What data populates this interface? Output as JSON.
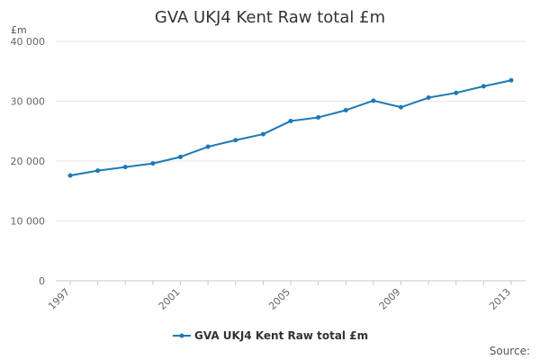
{
  "chart_data": {
    "type": "line",
    "title": "GVA UKJ4 Kent Raw total £m",
    "ylabel": "£m",
    "xlabel": "",
    "x": [
      1997,
      1998,
      1999,
      2000,
      2001,
      2002,
      2003,
      2004,
      2005,
      2006,
      2007,
      2008,
      2009,
      2010,
      2011,
      2012,
      2013
    ],
    "series": [
      {
        "name": "GVA UKJ4 Kent Raw total £m",
        "values": [
          17600,
          18400,
          19000,
          19600,
          20700,
          22400,
          23500,
          24500,
          26700,
          27300,
          28500,
          30100,
          29000,
          30600,
          31400,
          32500,
          33500
        ],
        "color": "#1f78b4"
      }
    ],
    "x_tick_labels": [
      "1997",
      "2001",
      "2005",
      "2009",
      "2013"
    ],
    "x_tick_values": [
      1997,
      2001,
      2005,
      2009,
      2013
    ],
    "y_tick_labels": [
      "0",
      "10 000",
      "20 000",
      "30 000",
      "40 000"
    ],
    "y_tick_values": [
      0,
      10000,
      20000,
      30000,
      40000
    ],
    "xlim": [
      1997,
      2013
    ],
    "ylim": [
      0,
      40000
    ],
    "grid": "horizontal",
    "legend_position": "bottom",
    "source_label": "Source:"
  }
}
